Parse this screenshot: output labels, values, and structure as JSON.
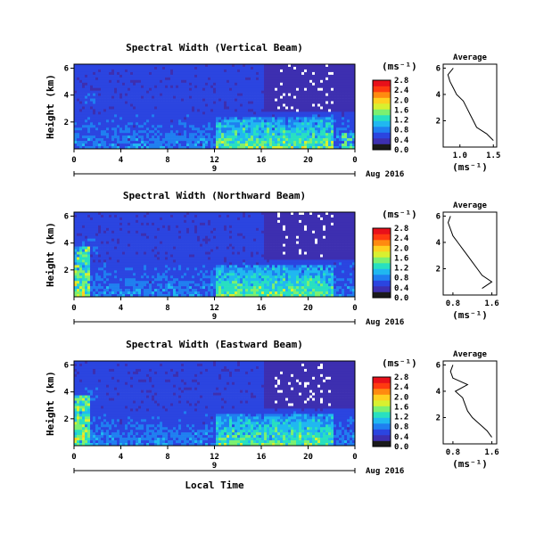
{
  "chart_data": {
    "shared": {
      "date_label": "Aug 2016",
      "x_axis_label": "Local Time",
      "x_ticks": [
        "0",
        "4",
        "8",
        "12",
        "16",
        "20",
        "0"
      ],
      "day_label": "9",
      "y_label": "Height (km)",
      "y_ticks": [
        "2",
        "4",
        "6"
      ],
      "cbar_unit": "(ms⁻¹)",
      "avg_title": "Average",
      "avg_xunit": "(ms⁻¹)",
      "colors": [
        "#1a1a1a",
        "#3d2fb0",
        "#2b45e0",
        "#1f7ff0",
        "#20b8f0",
        "#28e0c0",
        "#7cf070",
        "#d8f030",
        "#ffd020",
        "#ff8a10",
        "#ff3a10",
        "#e8101a"
      ]
    },
    "panels": [
      {
        "type": "heatmap",
        "title": "Spectral Width (Vertical Beam)",
        "cbar_ticks": [
          "0.0",
          "0.4",
          "0.8",
          "1.2",
          "1.6",
          "2.0",
          "2.4",
          "2.8"
        ],
        "avg_xticks": [
          "1.0",
          "1.5"
        ],
        "avg_xlim": [
          0.75,
          1.55
        ],
        "avg_profile": {
          "height_km": [
            0.5,
            1.0,
            1.5,
            2.0,
            2.5,
            3.0,
            3.5,
            4.0,
            4.5,
            5.0,
            5.5,
            6.0
          ],
          "width_ms": [
            1.5,
            1.4,
            1.25,
            1.2,
            1.15,
            1.1,
            1.05,
            0.95,
            0.9,
            0.85,
            0.82,
            0.9
          ]
        }
      },
      {
        "type": "heatmap",
        "title": "Spectral Width (Northward Beam)",
        "cbar_ticks": [
          "0.0",
          "0.4",
          "0.8",
          "1.2",
          "1.6",
          "2.0",
          "2.4",
          "2.8"
        ],
        "avg_xticks": [
          "0.8",
          "1.6"
        ],
        "avg_xlim": [
          0.6,
          1.7
        ],
        "avg_profile": {
          "height_km": [
            0.5,
            1.0,
            1.5,
            2.0,
            2.5,
            3.0,
            3.5,
            4.0,
            4.5,
            5.0,
            5.5,
            6.0
          ],
          "width_ms": [
            1.4,
            1.6,
            1.4,
            1.3,
            1.2,
            1.1,
            1.0,
            0.9,
            0.8,
            0.75,
            0.7,
            0.75
          ]
        }
      },
      {
        "type": "heatmap",
        "title": "Spectral Width (Eastward Beam)",
        "cbar_ticks": [
          "0.0",
          "0.4",
          "0.8",
          "1.2",
          "1.6",
          "2.0",
          "2.4",
          "2.8"
        ],
        "avg_xticks": [
          "0.8",
          "1.6"
        ],
        "avg_xlim": [
          0.6,
          1.7
        ],
        "avg_profile": {
          "height_km": [
            0.5,
            1.0,
            1.5,
            2.0,
            2.5,
            3.0,
            3.5,
            4.0,
            4.5,
            5.0,
            5.5,
            6.0
          ],
          "width_ms": [
            1.6,
            1.5,
            1.35,
            1.2,
            1.1,
            1.05,
            1.0,
            0.85,
            1.1,
            0.8,
            0.75,
            0.8
          ]
        }
      }
    ]
  }
}
